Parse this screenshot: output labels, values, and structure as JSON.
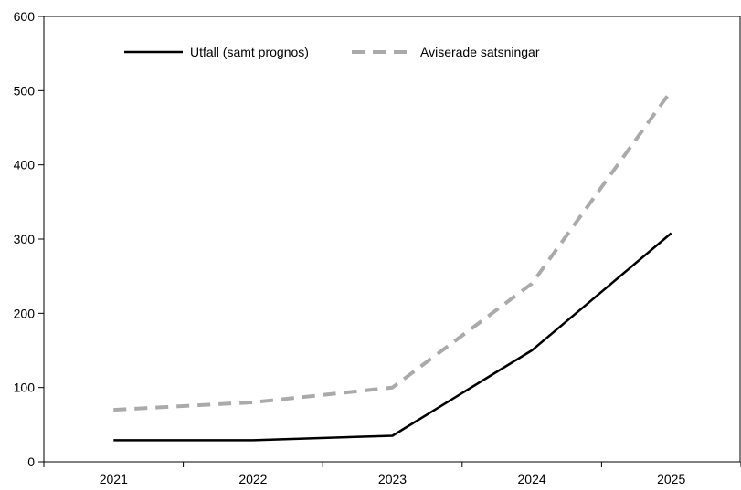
{
  "chart_data": {
    "type": "line",
    "categories": [
      "2021",
      "2022",
      "2023",
      "2024",
      "2025"
    ],
    "ylim": [
      0,
      600
    ],
    "yticks": [
      0,
      100,
      200,
      300,
      400,
      500,
      600
    ],
    "grid": false,
    "legend_position": "top-left",
    "series": [
      {
        "name": "Utfall (samt prognos)",
        "values": [
          29,
          29,
          35,
          150,
          308
        ],
        "color": "#000000",
        "style": "solid"
      },
      {
        "name": "Aviserade satsningar",
        "values": [
          70,
          80,
          100,
          240,
          500
        ],
        "color": "#aaaaaa",
        "style": "dashed"
      }
    ]
  }
}
